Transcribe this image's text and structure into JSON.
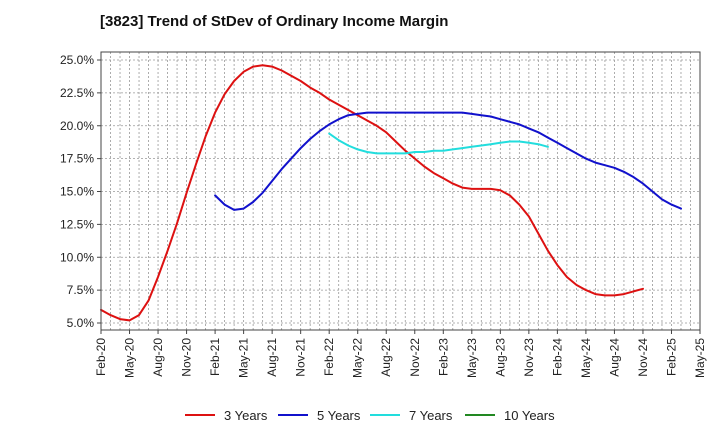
{
  "title": "[3823]  Trend of StDev of Ordinary Income Margin",
  "chart_data": {
    "type": "line",
    "title": "[3823]  Trend of StDev of Ordinary Income Margin",
    "xlabel": "",
    "ylabel": "",
    "ylim": [
      5.0,
      25.0
    ],
    "yticks": [
      5.0,
      7.5,
      10.0,
      12.5,
      15.0,
      17.5,
      20.0,
      22.5,
      25.0
    ],
    "ytick_labels": [
      "5.0%",
      "7.5%",
      "10.0%",
      "12.5%",
      "15.0%",
      "17.5%",
      "20.0%",
      "22.5%",
      "25.0%"
    ],
    "x_categories": [
      "Feb-20",
      "May-20",
      "Aug-20",
      "Nov-20",
      "Feb-21",
      "May-21",
      "Aug-21",
      "Nov-21",
      "Feb-22",
      "May-22",
      "Aug-22",
      "Nov-22",
      "Feb-23",
      "May-23",
      "Aug-23",
      "Nov-23",
      "Feb-24",
      "May-24",
      "Aug-24",
      "Nov-24",
      "Feb-25",
      "May-25"
    ],
    "grid": true,
    "legend_position": "bottom",
    "series": [
      {
        "name": "3 Years",
        "color": "#dd1111",
        "points": [
          [
            "Feb-20",
            6.0
          ],
          [
            "Mar-20",
            5.6
          ],
          [
            "Apr-20",
            5.3
          ],
          [
            "May-20",
            5.2
          ],
          [
            "Jun-20",
            5.6
          ],
          [
            "Jul-20",
            6.7
          ],
          [
            "Aug-20",
            8.5
          ],
          [
            "Sep-20",
            10.5
          ],
          [
            "Oct-20",
            12.6
          ],
          [
            "Nov-20",
            14.9
          ],
          [
            "Dec-20",
            17.1
          ],
          [
            "Jan-21",
            19.2
          ],
          [
            "Feb-21",
            21.0
          ],
          [
            "Mar-21",
            22.4
          ],
          [
            "Apr-21",
            23.4
          ],
          [
            "May-21",
            24.1
          ],
          [
            "Jun-21",
            24.5
          ],
          [
            "Jul-21",
            24.6
          ],
          [
            "Aug-21",
            24.5
          ],
          [
            "Sep-21",
            24.2
          ],
          [
            "Oct-21",
            23.8
          ],
          [
            "Nov-21",
            23.4
          ],
          [
            "Dec-21",
            22.9
          ],
          [
            "Jan-22",
            22.5
          ],
          [
            "Feb-22",
            22.0
          ],
          [
            "Mar-22",
            21.6
          ],
          [
            "Apr-22",
            21.2
          ],
          [
            "May-22",
            20.8
          ],
          [
            "Jun-22",
            20.4
          ],
          [
            "Jul-22",
            20.0
          ],
          [
            "Aug-22",
            19.5
          ],
          [
            "Sep-22",
            18.8
          ],
          [
            "Oct-22",
            18.1
          ],
          [
            "Nov-22",
            17.5
          ],
          [
            "Dec-22",
            16.9
          ],
          [
            "Jan-23",
            16.4
          ],
          [
            "Feb-23",
            16.0
          ],
          [
            "Mar-23",
            15.6
          ],
          [
            "Apr-23",
            15.3
          ],
          [
            "May-23",
            15.2
          ],
          [
            "Jun-23",
            15.2
          ],
          [
            "Jul-23",
            15.2
          ],
          [
            "Aug-23",
            15.1
          ],
          [
            "Sep-23",
            14.7
          ],
          [
            "Oct-23",
            14.0
          ],
          [
            "Nov-23",
            13.1
          ],
          [
            "Dec-23",
            11.8
          ],
          [
            "Jan-24",
            10.5
          ],
          [
            "Feb-24",
            9.4
          ],
          [
            "Mar-24",
            8.5
          ],
          [
            "Apr-24",
            7.9
          ],
          [
            "May-24",
            7.5
          ],
          [
            "Jun-24",
            7.2
          ],
          [
            "Jul-24",
            7.1
          ],
          [
            "Aug-24",
            7.1
          ],
          [
            "Sep-24",
            7.2
          ],
          [
            "Oct-24",
            7.4
          ],
          [
            "Nov-24",
            7.6
          ]
        ]
      },
      {
        "name": "5 Years",
        "color": "#1111cc",
        "points": [
          [
            "Feb-21",
            14.7
          ],
          [
            "Mar-21",
            14.0
          ],
          [
            "Apr-21",
            13.6
          ],
          [
            "May-21",
            13.7
          ],
          [
            "Jun-21",
            14.2
          ],
          [
            "Jul-21",
            14.9
          ],
          [
            "Aug-21",
            15.8
          ],
          [
            "Sep-21",
            16.7
          ],
          [
            "Oct-21",
            17.5
          ],
          [
            "Nov-21",
            18.3
          ],
          [
            "Dec-21",
            19.0
          ],
          [
            "Jan-22",
            19.6
          ],
          [
            "Feb-22",
            20.1
          ],
          [
            "Mar-22",
            20.5
          ],
          [
            "Apr-22",
            20.8
          ],
          [
            "May-22",
            20.9
          ],
          [
            "Jun-22",
            21.0
          ],
          [
            "Jul-22",
            21.0
          ],
          [
            "Aug-22",
            21.0
          ],
          [
            "Sep-22",
            21.0
          ],
          [
            "Oct-22",
            21.0
          ],
          [
            "Nov-22",
            21.0
          ],
          [
            "Dec-22",
            21.0
          ],
          [
            "Jan-23",
            21.0
          ],
          [
            "Feb-23",
            21.0
          ],
          [
            "Mar-23",
            21.0
          ],
          [
            "Apr-23",
            21.0
          ],
          [
            "May-23",
            20.9
          ],
          [
            "Jun-23",
            20.8
          ],
          [
            "Jul-23",
            20.7
          ],
          [
            "Aug-23",
            20.5
          ],
          [
            "Sep-23",
            20.3
          ],
          [
            "Oct-23",
            20.1
          ],
          [
            "Nov-23",
            19.8
          ],
          [
            "Dec-23",
            19.5
          ],
          [
            "Jan-24",
            19.1
          ],
          [
            "Feb-24",
            18.7
          ],
          [
            "Mar-24",
            18.3
          ],
          [
            "Apr-24",
            17.9
          ],
          [
            "May-24",
            17.5
          ],
          [
            "Jun-24",
            17.2
          ],
          [
            "Jul-24",
            17.0
          ],
          [
            "Aug-24",
            16.8
          ],
          [
            "Sep-24",
            16.5
          ],
          [
            "Oct-24",
            16.1
          ],
          [
            "Nov-24",
            15.6
          ],
          [
            "Dec-24",
            15.0
          ],
          [
            "Jan-25",
            14.4
          ],
          [
            "Feb-25",
            14.0
          ],
          [
            "Mar-25",
            13.7
          ]
        ]
      },
      {
        "name": "7 Years",
        "color": "#22dddd",
        "points": [
          [
            "Feb-22",
            19.4
          ],
          [
            "Mar-22",
            18.9
          ],
          [
            "Apr-22",
            18.5
          ],
          [
            "May-22",
            18.2
          ],
          [
            "Jun-22",
            18.0
          ],
          [
            "Jul-22",
            17.9
          ],
          [
            "Aug-22",
            17.9
          ],
          [
            "Sep-22",
            17.9
          ],
          [
            "Oct-22",
            17.9
          ],
          [
            "Nov-22",
            18.0
          ],
          [
            "Dec-22",
            18.0
          ],
          [
            "Jan-23",
            18.1
          ],
          [
            "Feb-23",
            18.1
          ],
          [
            "Mar-23",
            18.2
          ],
          [
            "Apr-23",
            18.3
          ],
          [
            "May-23",
            18.4
          ],
          [
            "Jun-23",
            18.5
          ],
          [
            "Jul-23",
            18.6
          ],
          [
            "Aug-23",
            18.7
          ],
          [
            "Sep-23",
            18.8
          ],
          [
            "Oct-23",
            18.8
          ],
          [
            "Nov-23",
            18.7
          ],
          [
            "Dec-23",
            18.6
          ],
          [
            "Jan-24",
            18.4
          ]
        ]
      },
      {
        "name": "10 Years",
        "color": "#228822",
        "points": []
      }
    ]
  }
}
